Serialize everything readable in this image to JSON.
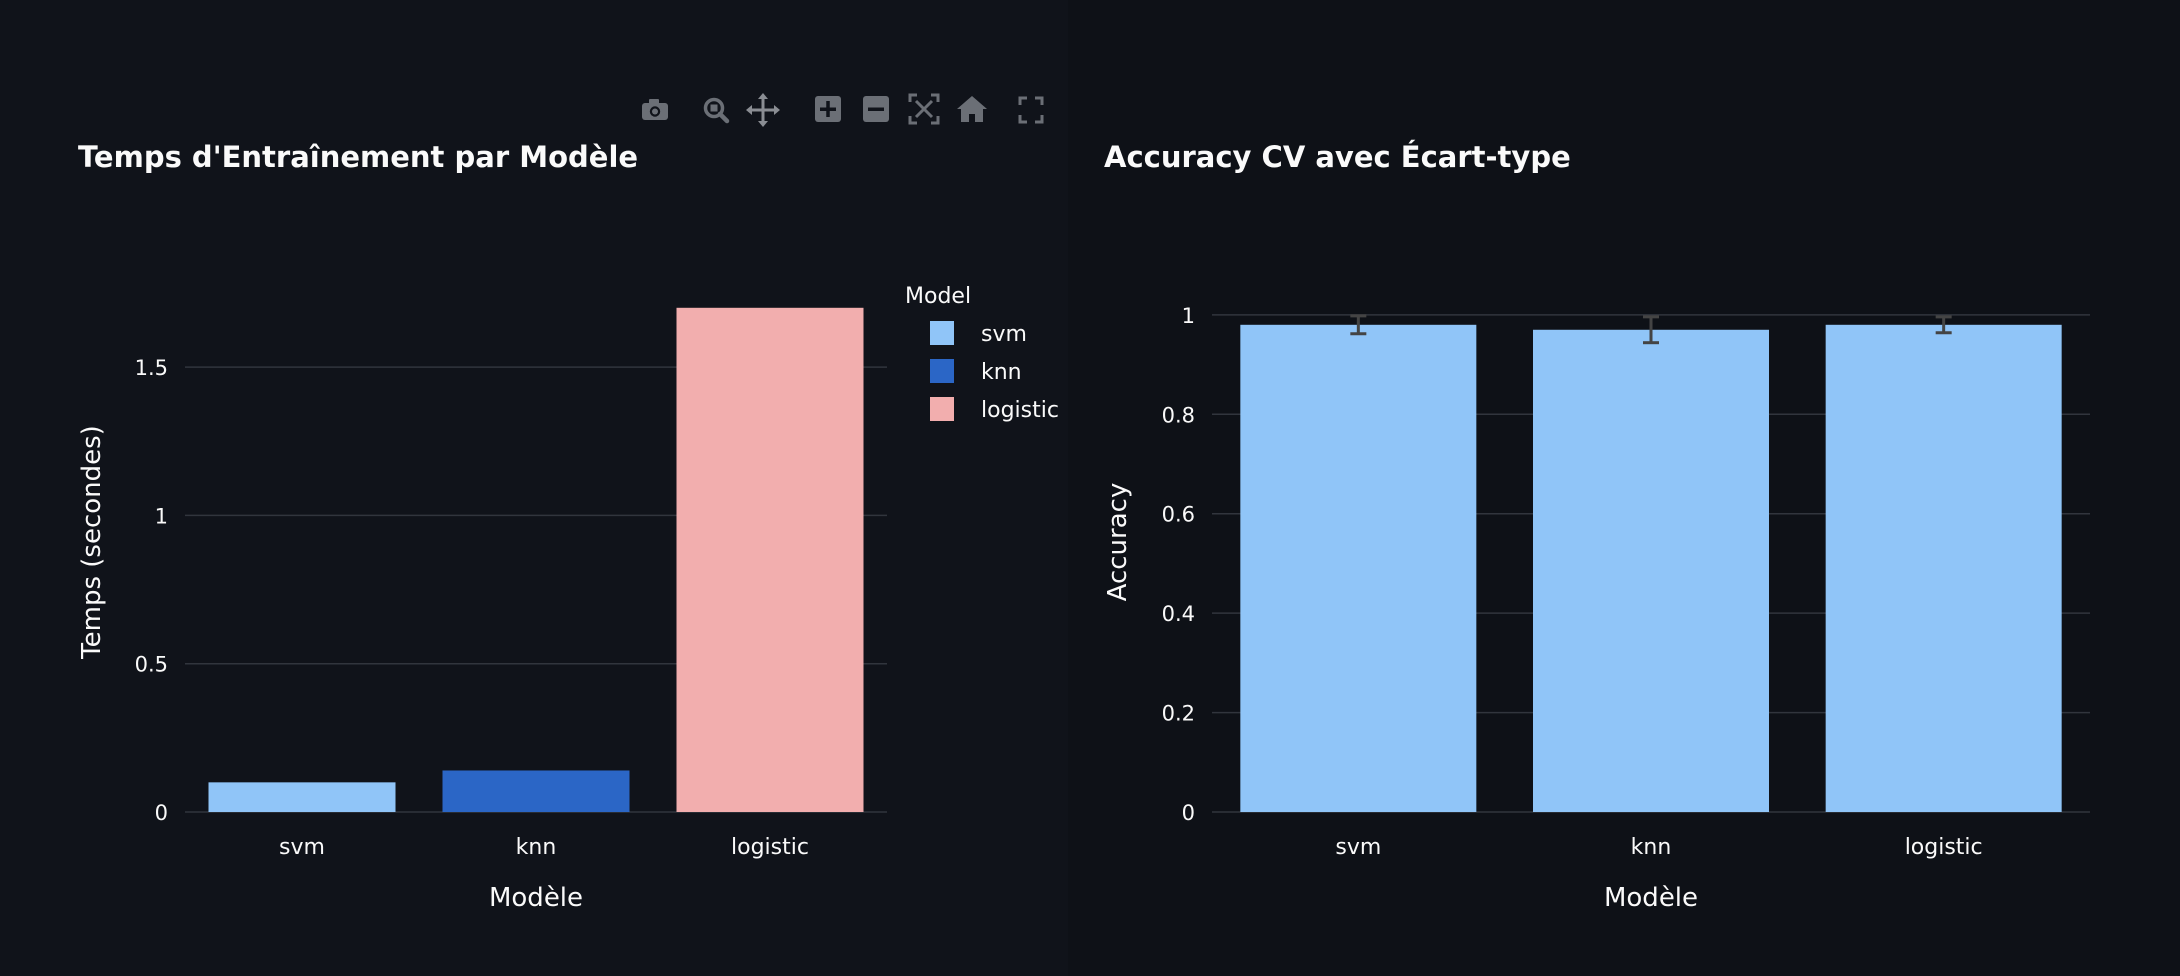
{
  "modebar": {
    "buttons": [
      "camera-icon",
      "zoom-icon",
      "pan-icon",
      "zoom-in-icon",
      "zoom-out-icon",
      "autoscale-icon",
      "reset-axes-icon",
      "fullscreen-icon"
    ]
  },
  "colors": {
    "background": "#0e1117",
    "panel_left": "#10131a",
    "grid": "#31353d",
    "text": "#fafafa",
    "svm": "#90c5f8",
    "knn": "#2b66c6",
    "logistic": "#f2aeae",
    "error_bar": "#444444"
  },
  "chart_data": [
    {
      "type": "bar",
      "title": "Temps d'Entraînement par Modèle",
      "xlabel": "Modèle",
      "ylabel": "Temps (secondes)",
      "categories": [
        "svm",
        "knn",
        "logistic"
      ],
      "values": [
        0.1,
        0.14,
        1.7
      ],
      "ylim": [
        0,
        1.76
      ],
      "yticks": [
        0,
        0.5,
        1,
        1.5
      ],
      "ytick_labels": [
        "0",
        "0.5",
        "1",
        "1.5"
      ],
      "grid": true,
      "legend": {
        "title": "Model",
        "placement": "top-right",
        "entries": [
          "svm",
          "knn",
          "logistic"
        ]
      }
    },
    {
      "type": "bar",
      "title": "Accuracy CV avec Écart-type",
      "xlabel": "Modèle",
      "ylabel": "Accuracy",
      "categories": [
        "svm",
        "knn",
        "logistic"
      ],
      "values": [
        0.98,
        0.97,
        0.98
      ],
      "error": [
        0.018,
        0.026,
        0.016
      ],
      "ylim": [
        0,
        1.05
      ],
      "yticks": [
        0,
        0.2,
        0.4,
        0.6,
        0.8,
        1
      ],
      "ytick_labels": [
        "0",
        "0.2",
        "0.4",
        "0.6",
        "0.8",
        "1"
      ],
      "grid": true
    }
  ]
}
